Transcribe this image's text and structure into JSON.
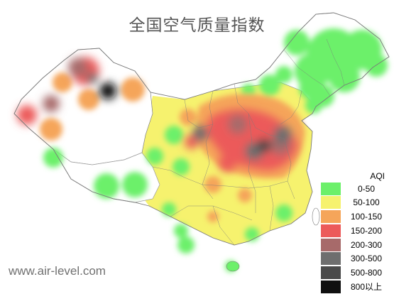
{
  "title": "全国空气质量指数",
  "watermark": "www.air-level.com",
  "legend": {
    "title": "AQI",
    "items": [
      {
        "label": "0-50",
        "color": "#6cf06a"
      },
      {
        "label": "50-100",
        "color": "#f6f26e"
      },
      {
        "label": "100-150",
        "color": "#f5a55a"
      },
      {
        "label": "150-200",
        "color": "#ec5a5a"
      },
      {
        "label": "200-300",
        "color": "#a76a6a"
      },
      {
        "label": "300-500",
        "color": "#6e6e6e"
      },
      {
        "label": "500-800",
        "color": "#4a4a4a"
      },
      {
        "label": "800以上",
        "color": "#101010"
      }
    ]
  }
}
